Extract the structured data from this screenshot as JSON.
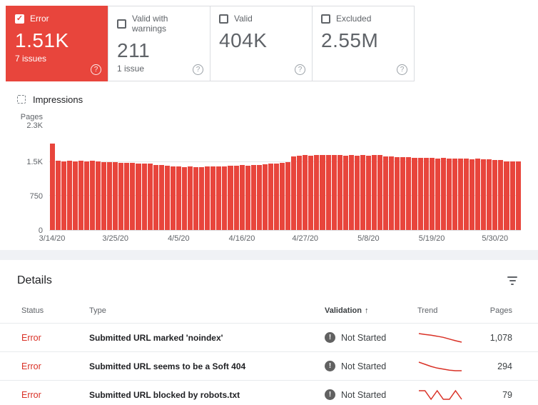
{
  "cards": [
    {
      "label": "Error",
      "count": "1.51K",
      "sub": "7 issues",
      "selected": true
    },
    {
      "label": "Valid with warnings",
      "count": "211",
      "sub": "1 issue",
      "selected": false
    },
    {
      "label": "Valid",
      "count": "404K",
      "sub": "",
      "selected": false
    },
    {
      "label": "Excluded",
      "count": "2.55M",
      "sub": "",
      "selected": false
    }
  ],
  "check_glyph": "✓",
  "help_glyph": "?",
  "impressions_label": "Impressions",
  "chart_data": {
    "type": "bar",
    "title": "",
    "ylabel": "Pages",
    "ylim": [
      0,
      2300
    ],
    "y_ticks": [
      "2.3K",
      "1.5K",
      "750",
      "0"
    ],
    "x_tick_labels": [
      "3/14/20",
      "3/25/20",
      "4/5/20",
      "4/16/20",
      "4/27/20",
      "5/8/20",
      "5/19/20",
      "5/30/20"
    ],
    "x_tick_indices": [
      0,
      11,
      22,
      33,
      44,
      55,
      66,
      77
    ],
    "bar_color": "#e8453c",
    "grid": true,
    "legend": "none",
    "values": [
      1900,
      1530,
      1520,
      1535,
      1510,
      1525,
      1515,
      1530,
      1505,
      1495,
      1500,
      1490,
      1480,
      1485,
      1475,
      1470,
      1465,
      1460,
      1440,
      1430,
      1420,
      1410,
      1400,
      1390,
      1395,
      1385,
      1390,
      1400,
      1405,
      1400,
      1410,
      1415,
      1420,
      1430,
      1425,
      1435,
      1440,
      1450,
      1460,
      1470,
      1480,
      1500,
      1620,
      1640,
      1650,
      1645,
      1650,
      1655,
      1660,
      1650,
      1655,
      1645,
      1650,
      1640,
      1650,
      1645,
      1655,
      1650,
      1630,
      1620,
      1610,
      1600,
      1605,
      1595,
      1590,
      1585,
      1590,
      1580,
      1585,
      1575,
      1580,
      1570,
      1575,
      1565,
      1570,
      1560,
      1555,
      1550,
      1545,
      1510,
      1520,
      1505
    ]
  },
  "details": {
    "title": "Details",
    "columns": {
      "status": "Status",
      "type": "Type",
      "validation": "Validation",
      "trend": "Trend",
      "pages": "Pages"
    },
    "sort_arrow": "↑",
    "rows": [
      {
        "status": "Error",
        "type": "Submitted URL marked 'noindex'",
        "validation": "Not Started",
        "pages": "1,078",
        "trend": [
          1150,
          1142,
          1136,
          1128,
          1118,
          1104,
          1090,
          1078
        ]
      },
      {
        "status": "Error",
        "type": "Submitted URL seems to be a Soft 404",
        "validation": "Not Started",
        "pages": "294",
        "trend": [
          310,
          306,
          302,
          299,
          297,
          295,
          294,
          294
        ]
      },
      {
        "status": "Error",
        "type": "Submitted URL blocked by robots.txt",
        "validation": "Not Started",
        "pages": "79",
        "trend": [
          80,
          80,
          79,
          80,
          79,
          79,
          80,
          79
        ]
      }
    ]
  },
  "colors": {
    "error_red": "#d93025",
    "card_red": "#e8453c",
    "text_gray": "#5f6368"
  }
}
